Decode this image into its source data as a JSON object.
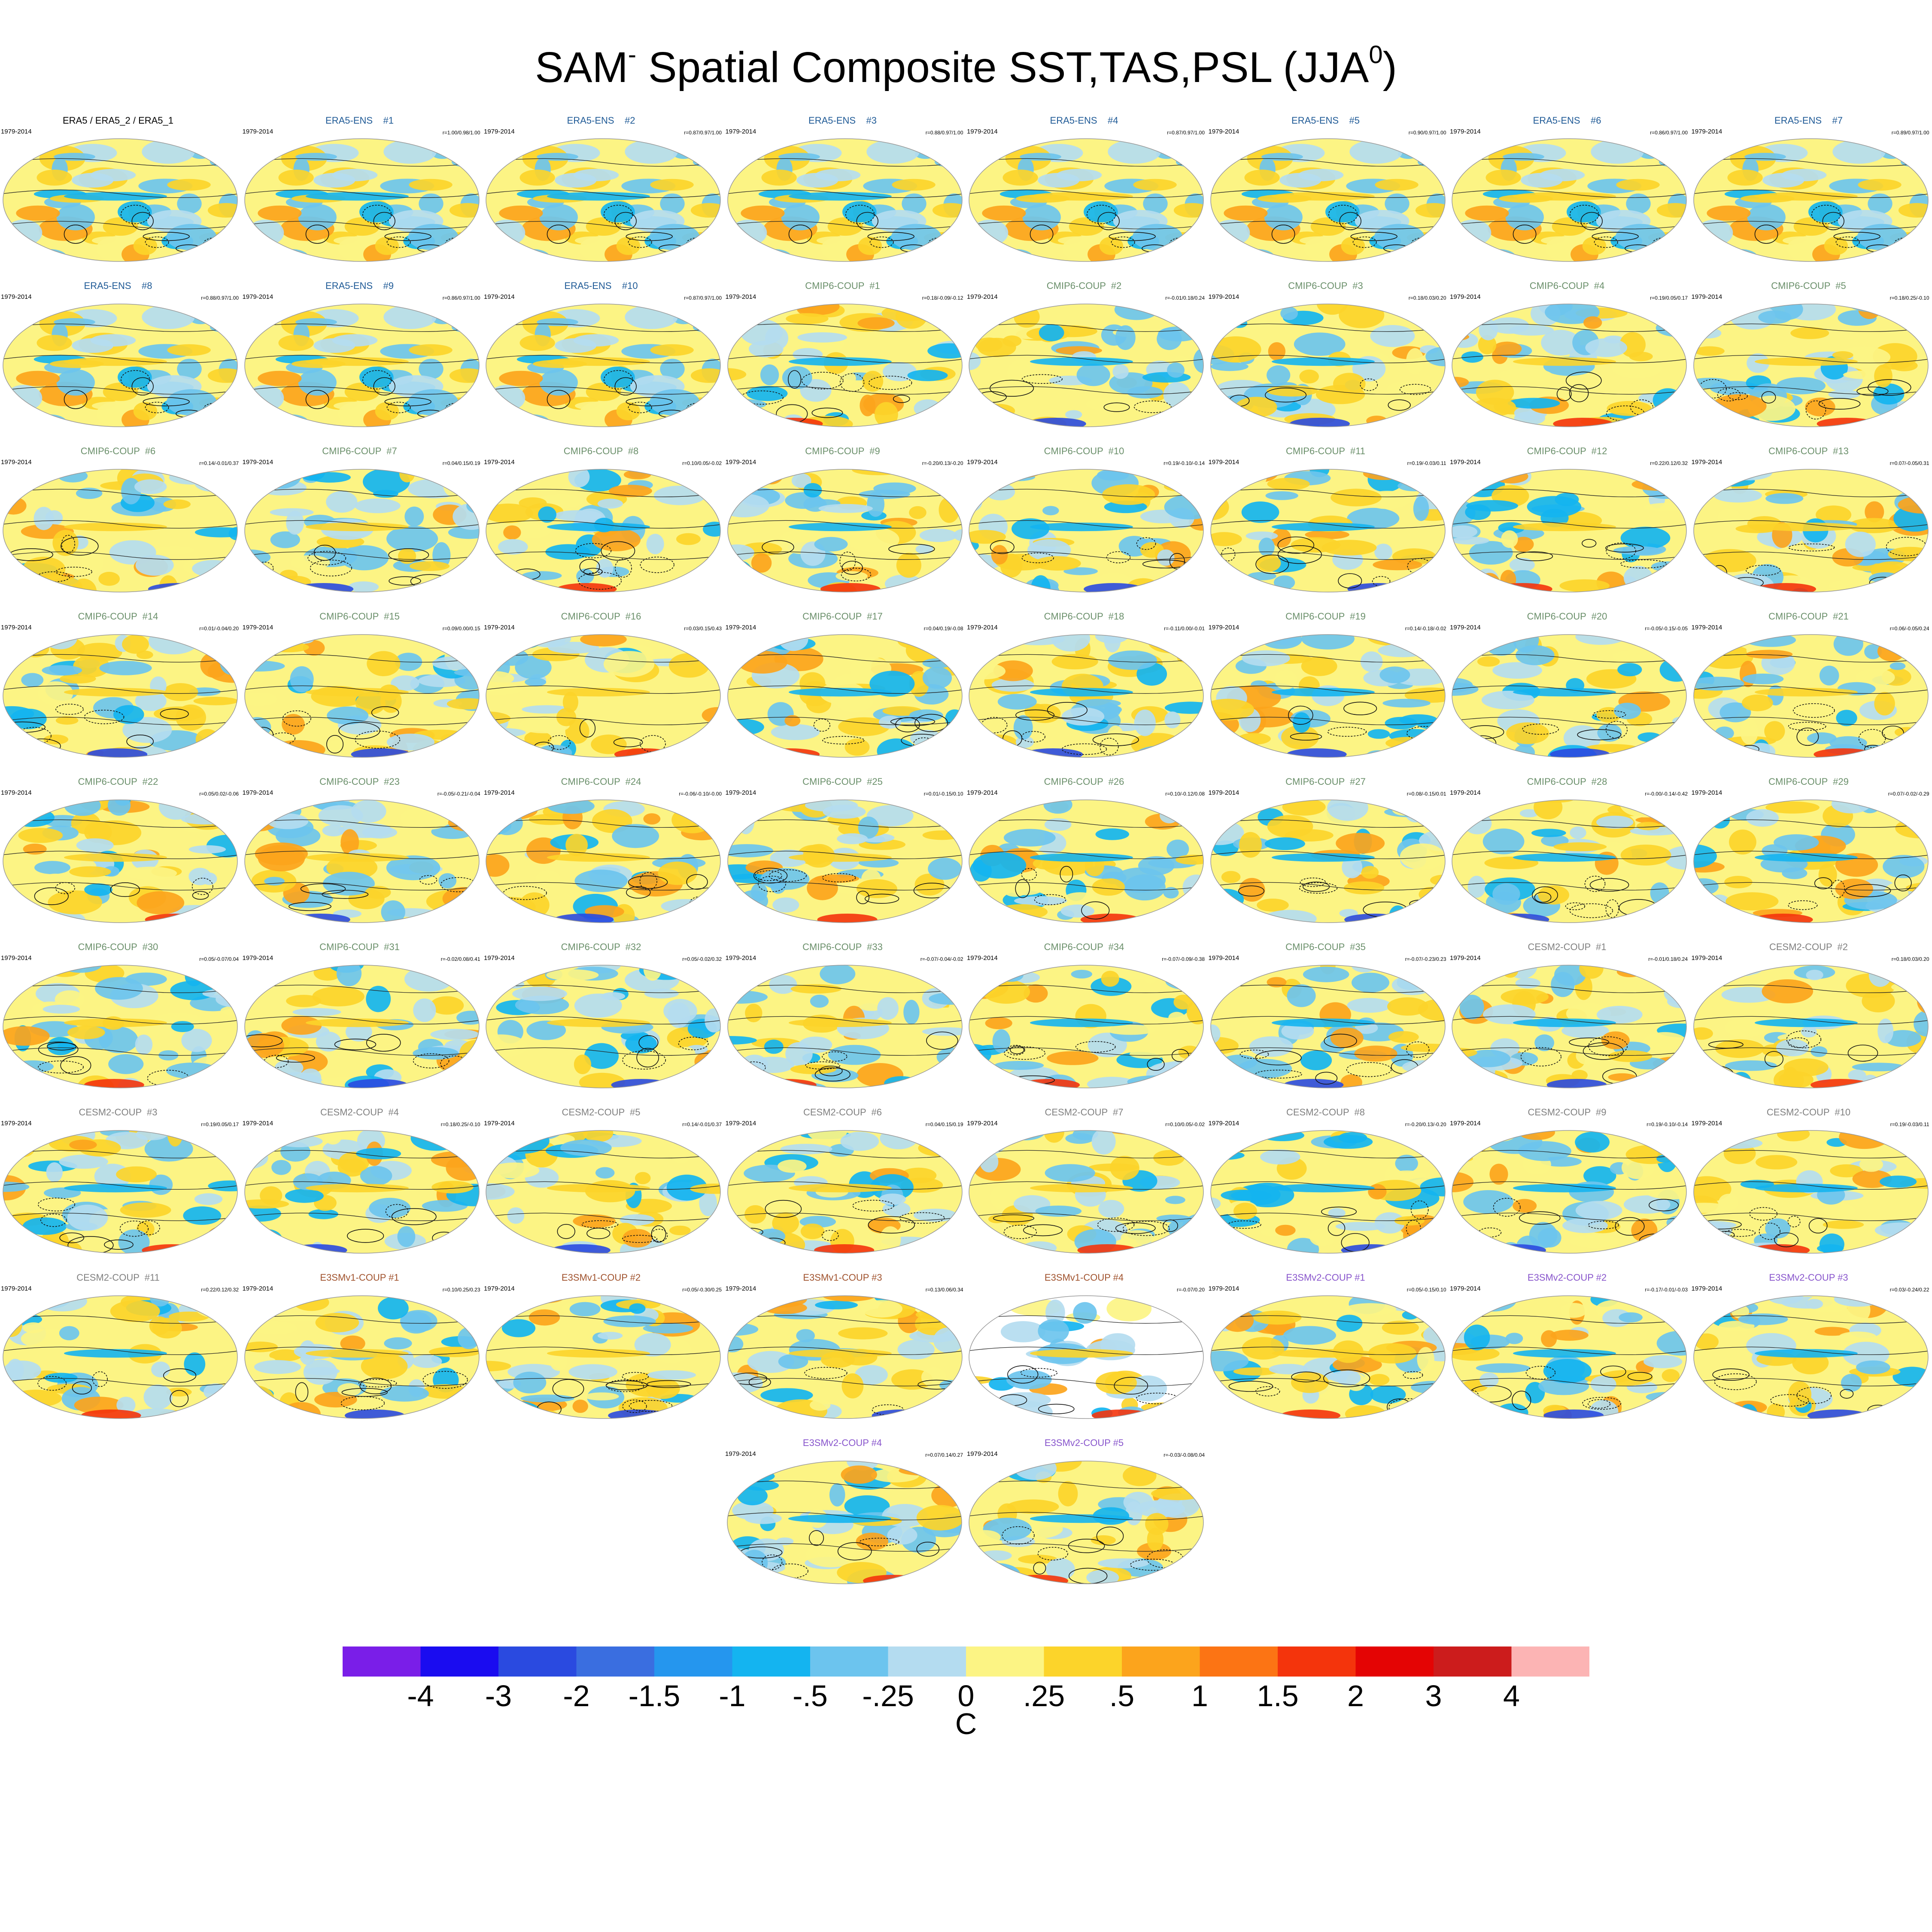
{
  "figure": {
    "title_main": "SAM",
    "title_sup": "-",
    "title_rest": " Spatial Composite SST,TAS,PSL (JJA",
    "title_sup2": "0",
    "title_end": ")"
  },
  "chart_data": {
    "type": "heatmap",
    "title": "SAM- Spatial Composite SST,TAS,PSL (JJA0)",
    "fields": [
      "SST",
      "TAS",
      "PSL"
    ],
    "season": "JJA0",
    "colorbar": {
      "unit": "C",
      "levels": [
        "-4",
        "-3",
        "-2",
        "-1.5",
        "-1",
        "-.5",
        "-.25",
        "0",
        ".25",
        ".5",
        "1",
        "1.5",
        "2",
        "3",
        "4"
      ],
      "colors": [
        "#7a1ee8",
        "#1a0cf0",
        "#2a4ae0",
        "#3a6ee0",
        "#2596ee",
        "#14b4f0",
        "#6cc4ee",
        "#b4dcf0",
        "#fcf484",
        "#fcd42a",
        "#fca41c",
        "#fc7414",
        "#f4340c",
        "#e40404",
        "#cc1c1c",
        "#fcb4b4"
      ]
    },
    "panels": [
      {
        "title": "ERA5 / ERA5_2 / ERA5_1",
        "years": "1979-2014",
        "r": "",
        "group": "obs",
        "hemi": "full"
      },
      {
        "title": "ERA5-ENS    #1",
        "years": "1979-2014",
        "r": "r=1.00/0.98/1.00",
        "group": "era",
        "hemi": "full"
      },
      {
        "title": "ERA5-ENS    #2",
        "years": "1979-2014",
        "r": "r=0.87/0.97/1.00",
        "group": "era",
        "hemi": "full"
      },
      {
        "title": "ERA5-ENS    #3",
        "years": "1979-2014",
        "r": "r=0.88/0.97/1.00",
        "group": "era",
        "hemi": "full"
      },
      {
        "title": "ERA5-ENS    #4",
        "years": "1979-2014",
        "r": "r=0.87/0.97/1.00",
        "group": "era",
        "hemi": "full"
      },
      {
        "title": "ERA5-ENS    #5",
        "years": "1979-2014",
        "r": "r=0.90/0.97/1.00",
        "group": "era",
        "hemi": "full"
      },
      {
        "title": "ERA5-ENS    #6",
        "years": "1979-2014",
        "r": "r=0.86/0.97/1.00",
        "group": "era",
        "hemi": "full"
      },
      {
        "title": "ERA5-ENS    #7",
        "years": "1979-2014",
        "r": "r=0.89/0.97/1.00",
        "group": "era",
        "hemi": "full"
      },
      {
        "title": "ERA5-ENS    #8",
        "years": "1979-2014",
        "r": "r=0.88/0.97/1.00",
        "group": "era",
        "hemi": "full"
      },
      {
        "title": "ERA5-ENS    #9",
        "years": "1979-2014",
        "r": "r=0.86/0.97/1.00",
        "group": "era",
        "hemi": "full"
      },
      {
        "title": "ERA5-ENS    #10",
        "years": "1979-2014",
        "r": "r=0.87/0.97/1.00",
        "group": "era",
        "hemi": "full"
      },
      {
        "title": "CMIP6-COUP  #1",
        "years": "1979-2014",
        "r": "r=0.18/-0.09/-0.12",
        "group": "cmip",
        "hemi": "full"
      },
      {
        "title": "CMIP6-COUP  #2",
        "years": "1979-2014",
        "r": "r=-0.01/0.18/0.24",
        "group": "cmip",
        "hemi": "full"
      },
      {
        "title": "CMIP6-COUP  #3",
        "years": "1979-2014",
        "r": "r=0.18/0.03/0.20",
        "group": "cmip",
        "hemi": "full"
      },
      {
        "title": "CMIP6-COUP  #4",
        "years": "1979-2014",
        "r": "r=0.19/0.05/0.17",
        "group": "cmip",
        "hemi": "full"
      },
      {
        "title": "CMIP6-COUP  #5",
        "years": "1979-2014",
        "r": "r=0.18/0.25/-0.10",
        "group": "cmip",
        "hemi": "full"
      },
      {
        "title": "CMIP6-COUP  #6",
        "years": "1979-2014",
        "r": "r=0.14/-0.01/0.37",
        "group": "cmip",
        "hemi": "full"
      },
      {
        "title": "CMIP6-COUP  #7",
        "years": "1979-2014",
        "r": "r=0.04/0.15/0.19",
        "group": "cmip",
        "hemi": "full"
      },
      {
        "title": "CMIP6-COUP  #8",
        "years": "1979-2014",
        "r": "r=0.10/0.05/-0.02",
        "group": "cmip",
        "hemi": "full"
      },
      {
        "title": "CMIP6-COUP  #9",
        "years": "1979-2014",
        "r": "r=-0.20/0.13/-0.20",
        "group": "cmip",
        "hemi": "full"
      },
      {
        "title": "CMIP6-COUP  #10",
        "years": "1979-2014",
        "r": "r=0.19/-0.10/-0.14",
        "group": "cmip",
        "hemi": "full"
      },
      {
        "title": "CMIP6-COUP  #11",
        "years": "1979-2014",
        "r": "r=0.19/-0.03/0.11",
        "group": "cmip",
        "hemi": "full"
      },
      {
        "title": "CMIP6-COUP  #12",
        "years": "1979-2014",
        "r": "r=0.22/0.12/0.32",
        "group": "cmip",
        "hemi": "full"
      },
      {
        "title": "CMIP6-COUP  #13",
        "years": "1979-2014",
        "r": "r=0.07/-0.05/0.31",
        "group": "cmip",
        "hemi": "full"
      },
      {
        "title": "CMIP6-COUP  #14",
        "years": "1979-2014",
        "r": "r=0.01/-0.04/0.20",
        "group": "cmip",
        "hemi": "full"
      },
      {
        "title": "CMIP6-COUP  #15",
        "years": "1979-2014",
        "r": "r=0.09/0.00/0.15",
        "group": "cmip",
        "hemi": "full"
      },
      {
        "title": "CMIP6-COUP  #16",
        "years": "1979-2014",
        "r": "r=0.03/0.15/0.43",
        "group": "cmip",
        "hemi": "full"
      },
      {
        "title": "CMIP6-COUP  #17",
        "years": "1979-2014",
        "r": "r=0.04/0.19/-0.08",
        "group": "cmip",
        "hemi": "full"
      },
      {
        "title": "CMIP6-COUP  #18",
        "years": "1979-2014",
        "r": "r=-0.11/0.00/-0.01",
        "group": "cmip",
        "hemi": "full"
      },
      {
        "title": "CMIP6-COUP  #19",
        "years": "1979-2014",
        "r": "r=0.14/-0.18/-0.02",
        "group": "cmip",
        "hemi": "full"
      },
      {
        "title": "CMIP6-COUP  #20",
        "years": "1979-2014",
        "r": "r=-0.05/-0.15/-0.05",
        "group": "cmip",
        "hemi": "full"
      },
      {
        "title": "CMIP6-COUP  #21",
        "years": "1979-2014",
        "r": "r=0.06/-0.05/0.24",
        "group": "cmip",
        "hemi": "full"
      },
      {
        "title": "CMIP6-COUP  #22",
        "years": "1979-2014",
        "r": "r=0.05/0.02/-0.06",
        "group": "cmip",
        "hemi": "full"
      },
      {
        "title": "CMIP6-COUP  #23",
        "years": "1979-2014",
        "r": "r=-0.05/-0.21/-0.04",
        "group": "cmip",
        "hemi": "full"
      },
      {
        "title": "CMIP6-COUP  #24",
        "years": "1979-2014",
        "r": "r=-0.06/-0.10/-0.00",
        "group": "cmip",
        "hemi": "full"
      },
      {
        "title": "CMIP6-COUP  #25",
        "years": "1979-2014",
        "r": "r=0.01/-0.15/0.10",
        "group": "cmip",
        "hemi": "full"
      },
      {
        "title": "CMIP6-COUP  #26",
        "years": "1979-2014",
        "r": "r=0.10/-0.12/0.08",
        "group": "cmip",
        "hemi": "full"
      },
      {
        "title": "CMIP6-COUP  #27",
        "years": "1979-2014",
        "r": "r=0.08/-0.15/0.01",
        "group": "cmip",
        "hemi": "full"
      },
      {
        "title": "CMIP6-COUP  #28",
        "years": "1979-2014",
        "r": "r=-0.00/-0.14/-0.42",
        "group": "cmip",
        "hemi": "full"
      },
      {
        "title": "CMIP6-COUP  #29",
        "years": "1979-2014",
        "r": "r=0.07/-0.02/-0.29",
        "group": "cmip",
        "hemi": "full"
      },
      {
        "title": "CMIP6-COUP  #30",
        "years": "1979-2014",
        "r": "r=0.05/-0.07/0.04",
        "group": "cmip",
        "hemi": "full"
      },
      {
        "title": "CMIP6-COUP  #31",
        "years": "1979-2014",
        "r": "r=-0.02/0.08/0.41",
        "group": "cmip",
        "hemi": "full"
      },
      {
        "title": "CMIP6-COUP  #32",
        "years": "1979-2014",
        "r": "r=0.05/-0.02/0.32",
        "group": "cmip",
        "hemi": "full"
      },
      {
        "title": "CMIP6-COUP  #33",
        "years": "1979-2014",
        "r": "r=-0.07/-0.04/-0.02",
        "group": "cmip",
        "hemi": "full"
      },
      {
        "title": "CMIP6-COUP  #34",
        "years": "1979-2014",
        "r": "r=-0.07/-0.09/-0.38",
        "group": "cmip",
        "hemi": "full"
      },
      {
        "title": "CMIP6-COUP  #35",
        "years": "1979-2014",
        "r": "r=-0.07/-0.23/0.23",
        "group": "cmip",
        "hemi": "full"
      },
      {
        "title": "CESM2-COUP  #1",
        "years": "1979-2014",
        "r": "r=-0.01/0.18/0.24",
        "group": "cesm",
        "hemi": "full"
      },
      {
        "title": "CESM2-COUP  #2",
        "years": "1979-2014",
        "r": "r=0.18/0.03/0.20",
        "group": "cesm",
        "hemi": "full"
      },
      {
        "title": "CESM2-COUP  #3",
        "years": "1979-2014",
        "r": "r=0.19/0.05/0.17",
        "group": "cesm",
        "hemi": "full"
      },
      {
        "title": "CESM2-COUP  #4",
        "years": "1979-2014",
        "r": "r=0.18/0.25/-0.10",
        "group": "cesm",
        "hemi": "full"
      },
      {
        "title": "CESM2-COUP  #5",
        "years": "1979-2014",
        "r": "r=0.14/-0.01/0.37",
        "group": "cesm",
        "hemi": "full"
      },
      {
        "title": "CESM2-COUP  #6",
        "years": "1979-2014",
        "r": "r=0.04/0.15/0.19",
        "group": "cesm",
        "hemi": "full"
      },
      {
        "title": "CESM2-COUP  #7",
        "years": "1979-2014",
        "r": "r=0.10/0.05/-0.02",
        "group": "cesm",
        "hemi": "full"
      },
      {
        "title": "CESM2-COUP  #8",
        "years": "1979-2014",
        "r": "r=-0.20/0.13/-0.20",
        "group": "cesm",
        "hemi": "full"
      },
      {
        "title": "CESM2-COUP  #9",
        "years": "1979-2014",
        "r": "r=0.19/-0.10/-0.14",
        "group": "cesm",
        "hemi": "full"
      },
      {
        "title": "CESM2-COUP  #10",
        "years": "1979-2014",
        "r": "r=0.19/-0.03/0.11",
        "group": "cesm",
        "hemi": "full"
      },
      {
        "title": "CESM2-COUP  #11",
        "years": "1979-2014",
        "r": "r=0.22/0.12/0.32",
        "group": "cesm",
        "hemi": "full"
      },
      {
        "title": "E3SMv1-COUP #1",
        "years": "1979-2014",
        "r": "r=0.10/0.25/0.23",
        "group": "e1",
        "hemi": "full"
      },
      {
        "title": "E3SMv1-COUP #2",
        "years": "1979-2014",
        "r": "r=0.05/-0.30/0.25",
        "group": "e1",
        "hemi": "full"
      },
      {
        "title": "E3SMv1-COUP #3",
        "years": "1979-2014",
        "r": "r=0.13/0.06/0.34",
        "group": "e1",
        "hemi": "full"
      },
      {
        "title": "E3SMv1-COUP #4",
        "years": "",
        "r": "r=-0.07/0.20",
        "group": "e1",
        "hemi": "ocean"
      },
      {
        "title": "E3SMv2-COUP #1",
        "years": "1979-2014",
        "r": "r=0.05/-0.15/0.10",
        "group": "e2",
        "hemi": "full"
      },
      {
        "title": "E3SMv2-COUP #2",
        "years": "1979-2014",
        "r": "r=-0.17/-0.01/-0.03",
        "group": "e2",
        "hemi": "full"
      },
      {
        "title": "E3SMv2-COUP #3",
        "years": "1979-2014",
        "r": "r=0.03/-0.24/0.22",
        "group": "e2",
        "hemi": "full"
      },
      {
        "title": "E3SMv2-COUP #4",
        "years": "1979-2014",
        "r": "r=0.07/0.14/0.27",
        "group": "e2",
        "hemi": "full"
      },
      {
        "title": "E3SMv2-COUP #5",
        "years": "1979-2014",
        "r": "r=-0.03/-0.08/0.04",
        "group": "e2",
        "hemi": "full"
      }
    ]
  }
}
